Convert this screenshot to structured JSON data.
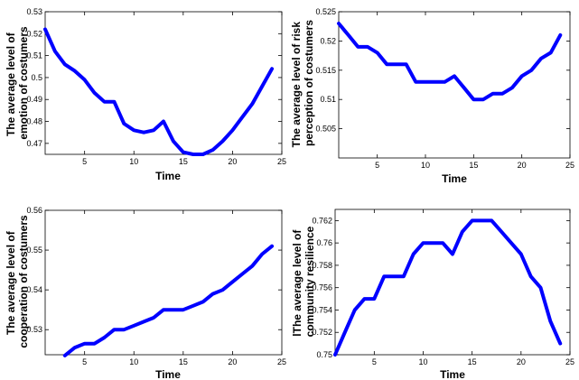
{
  "chart_data": [
    {
      "type": "line",
      "xlabel": "Time",
      "ylabel_lines": [
        "The average level of",
        "emotion of costumers"
      ],
      "xlim": [
        1,
        25
      ],
      "ylim": [
        0.465,
        0.53
      ],
      "xticks": [
        5,
        10,
        15,
        20,
        25
      ],
      "yticks": [
        0.47,
        0.48,
        0.49,
        0.5,
        0.51,
        0.52,
        0.53
      ],
      "ytick_labels": [
        "0.47",
        "0.48",
        "0.49",
        "0.5",
        "0.51",
        "0.52",
        "0.53"
      ],
      "line_color": "#0000ff",
      "x": [
        1,
        2,
        3,
        4,
        5,
        6,
        7,
        8,
        9,
        10,
        11,
        12,
        13,
        14,
        15,
        16,
        17,
        18,
        19,
        20,
        21,
        22,
        23,
        24
      ],
      "y": [
        0.522,
        0.512,
        0.506,
        0.503,
        0.499,
        0.493,
        0.489,
        0.489,
        0.479,
        0.476,
        0.475,
        0.476,
        0.48,
        0.471,
        0.466,
        0.465,
        0.465,
        0.467,
        0.471,
        0.476,
        0.482,
        0.488,
        0.496,
        0.504
      ]
    },
    {
      "type": "line",
      "xlabel": "Time",
      "ylabel_lines": [
        "The average level of risk",
        "perception of costumers"
      ],
      "xlim": [
        1,
        25
      ],
      "ylim": [
        0.5,
        0.525
      ],
      "xticks": [
        5,
        10,
        15,
        20,
        25
      ],
      "yticks": [
        0.505,
        0.51,
        0.515,
        0.52,
        0.525
      ],
      "ytick_labels": [
        "0.505",
        "0.51",
        "0.515",
        "0.52",
        "0.525"
      ],
      "line_color": "#0000ff",
      "x": [
        1,
        2,
        3,
        4,
        5,
        6,
        7,
        8,
        9,
        10,
        11,
        12,
        13,
        14,
        15,
        16,
        17,
        18,
        19,
        20,
        21,
        22,
        23,
        24
      ],
      "y": [
        0.523,
        0.521,
        0.519,
        0.519,
        0.518,
        0.516,
        0.516,
        0.516,
        0.513,
        0.513,
        0.513,
        0.513,
        0.514,
        0.512,
        0.51,
        0.51,
        0.511,
        0.511,
        0.512,
        0.514,
        0.515,
        0.517,
        0.518,
        0.521
      ]
    },
    {
      "type": "line",
      "xlabel": "Time",
      "ylabel_lines": [
        "The average level of",
        "cooperation of costumers"
      ],
      "xlim": [
        1,
        25
      ],
      "ylim": [
        0.5237,
        0.56
      ],
      "xticks": [
        5,
        10,
        15,
        20,
        25
      ],
      "yticks": [
        0.53,
        0.54,
        0.55,
        0.56
      ],
      "ytick_labels": [
        "0.53",
        "0.54",
        "0.55",
        "0.56"
      ],
      "line_color": "#0000ff",
      "x": [
        3,
        4,
        5,
        6,
        7,
        8,
        9,
        10,
        11,
        12,
        13,
        14,
        15,
        16,
        17,
        18,
        19,
        20,
        21,
        22,
        23,
        24
      ],
      "y": [
        0.5235,
        0.5255,
        0.5265,
        0.5265,
        0.528,
        0.53,
        0.53,
        0.531,
        0.532,
        0.533,
        0.535,
        0.535,
        0.535,
        0.536,
        0.537,
        0.539,
        0.54,
        0.542,
        0.544,
        0.546,
        0.549,
        0.551
      ]
    },
    {
      "type": "line",
      "xlabel": "Time",
      "ylabel_lines": [
        "lThe average level of",
        "community resilience"
      ],
      "xlim": [
        1,
        25
      ],
      "ylim": [
        0.75,
        0.763
      ],
      "xticks": [
        5,
        10,
        15,
        20,
        25
      ],
      "yticks": [
        0.75,
        0.752,
        0.754,
        0.756,
        0.758,
        0.76,
        0.762
      ],
      "ytick_labels": [
        "0.75",
        "0.752",
        "0.754",
        "0.756",
        "0.758",
        "0.76",
        "0.762"
      ],
      "line_color": "#0000ff",
      "x": [
        1,
        2,
        3,
        4,
        5,
        6,
        7,
        8,
        9,
        10,
        11,
        12,
        13,
        14,
        15,
        16,
        17,
        18,
        19,
        20,
        21,
        22,
        23,
        24
      ],
      "y": [
        0.75,
        0.752,
        0.754,
        0.755,
        0.755,
        0.757,
        0.757,
        0.757,
        0.759,
        0.76,
        0.76,
        0.76,
        0.759,
        0.761,
        0.762,
        0.762,
        0.762,
        0.761,
        0.76,
        0.759,
        0.757,
        0.756,
        0.753,
        0.751
      ]
    }
  ]
}
